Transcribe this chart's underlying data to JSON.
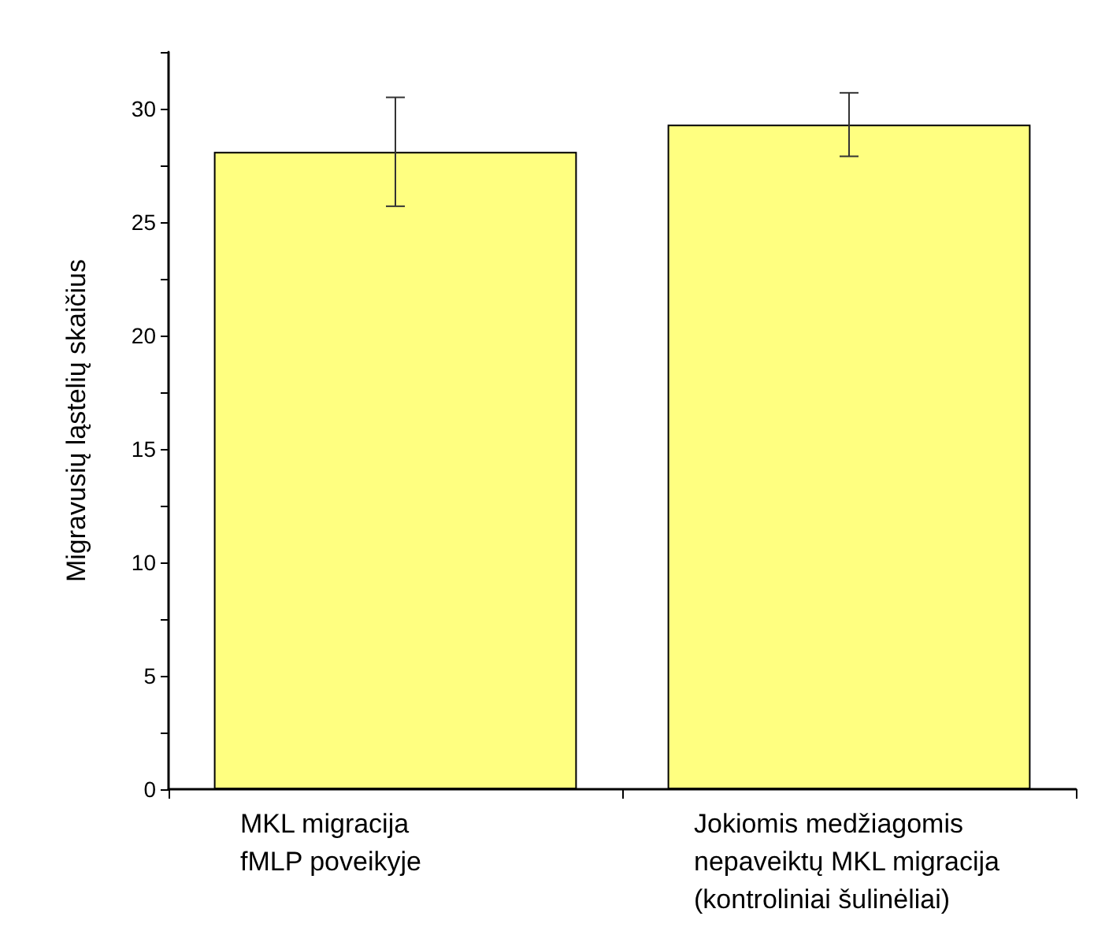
{
  "chart_data": {
    "type": "bar",
    "ylabel": "Migravusių ląstelių skaičius",
    "categories": [
      "MKL migracija\nfMLP poveikyje",
      "Jokiomis medžiagomis\nnepaveiktų MKL migracija\n(kontroliniai šulinėliai)"
    ],
    "series": [
      {
        "color": "#ffff80",
        "values": [
          28.1,
          29.3
        ],
        "errors": [
          2.4,
          1.4
        ]
      }
    ],
    "ylim": [
      0,
      32.5
    ],
    "yticks": [
      0,
      {
        "value": 2.5,
        "label": null
      },
      5,
      {
        "value": 7.5,
        "label": null
      },
      10,
      {
        "value": 12.5,
        "label": null
      },
      15,
      {
        "value": 17.5,
        "label": null
      },
      20,
      {
        "value": 22.5,
        "label": null
      },
      25,
      {
        "value": 27.5,
        "label": null
      },
      30,
      {
        "value": 32.5,
        "label": null
      }
    ],
    "grid": false
  }
}
